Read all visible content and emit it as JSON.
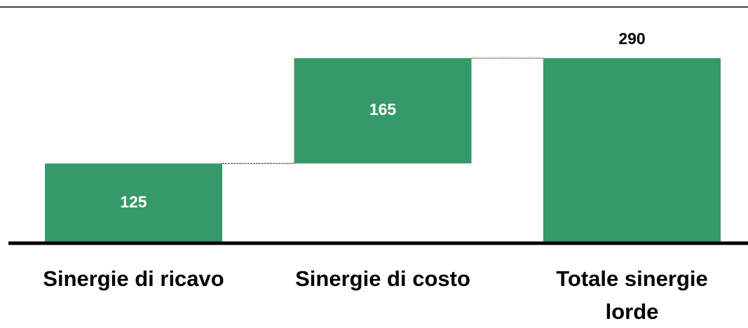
{
  "chart_data": {
    "type": "waterfall",
    "categories": [
      "Sinergie di ricavo",
      "Sinergie di costo",
      "Totale sinergie lorde"
    ],
    "values": [
      125,
      165,
      290
    ],
    "measure": [
      "relative",
      "relative",
      "total"
    ],
    "color": "#359a67"
  }
}
